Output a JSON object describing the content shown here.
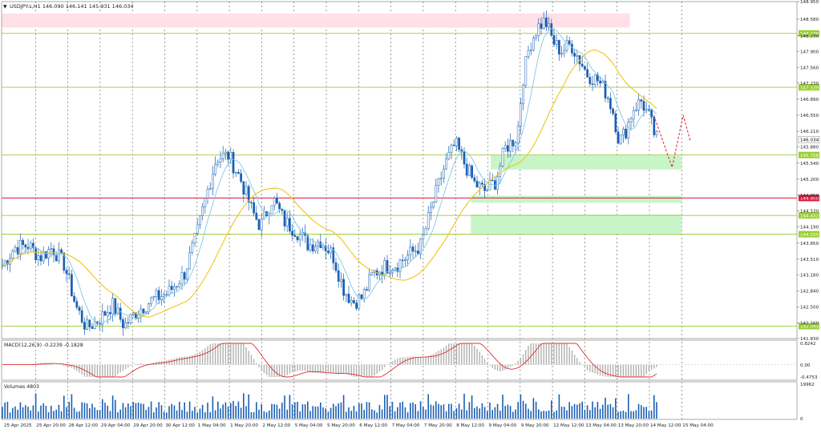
{
  "header": {
    "symbol_line": "USDJPY.s,H1  146.090 146.141 145.931 146.034"
  },
  "macd": {
    "label": "MACD(12,26,9) -0.2239 -0.1828",
    "ticks": [
      0.8242,
      0.0,
      -0.4753
    ],
    "tick_labels": [
      "0.8242",
      "0.00",
      "-0.4753"
    ]
  },
  "volumes": {
    "label": "Volumes 4803",
    "ticks": [
      19962,
      0
    ],
    "tick_labels": [
      "19962",
      "0"
    ]
  },
  "colors": {
    "bull": "#1a5fb4",
    "bear": "#1a5fb4",
    "ma_fast": "#7ec8e8",
    "ma_slow": "#f0c419",
    "level_line": "#9acd32",
    "resistance_zone": "#ffe0e6",
    "support_zone": "#c8f5c8",
    "red_level": "#dc143c",
    "forecast": "#e03048",
    "macd_hist": "#b0b0b0",
    "macd_signal": "#e03030",
    "volume_bar": "#1a5fb4",
    "price_tag": "#9acd32"
  },
  "chart_data": {
    "type": "candlestick",
    "ylim": [
      141.83,
      148.95
    ],
    "y_ticks": [
      148.95,
      148.58,
      148.23,
      147.9,
      147.56,
      147.23,
      146.89,
      146.55,
      146.21,
      145.88,
      145.54,
      145.2,
      144.86,
      144.53,
      144.19,
      143.85,
      143.51,
      143.18,
      142.84,
      142.5,
      142.16,
      141.83
    ],
    "y_tick_labels": [
      "148.950",
      "148.580",
      "148.230",
      "147.900",
      "147.560",
      "147.230",
      "146.890",
      "146.550",
      "146.210",
      "145.880",
      "145.540",
      "145.200",
      "144.860",
      "144.530",
      "144.190",
      "143.850",
      "143.510",
      "143.180",
      "142.840",
      "142.500",
      "142.160",
      "141.830"
    ],
    "x_labels": [
      "25 Apr 2025",
      "25 Apr 20:00",
      "28 Apr 12:00",
      "29 Apr 04:00",
      "29 Apr 20:00",
      "30 Apr 12:00",
      "1 May 04:00",
      "1 May 20:00",
      "2 May 12:00",
      "5 May 04:00",
      "5 May 20:00",
      "6 May 12:00",
      "7 May 04:00",
      "7 May 20:00",
      "8 May 12:00",
      "9 May 04:00",
      "9 May 20:00",
      "12 May 12:00",
      "13 May 04:00",
      "13 May 20:00",
      "14 May 12:00",
      "15 May 04:00"
    ],
    "current_price": 146.034,
    "current_price_label": "146.034",
    "levels": [
      {
        "value": 148.278,
        "label": "148.278",
        "kind": "green"
      },
      {
        "value": 147.139,
        "label": "147.139",
        "kind": "green"
      },
      {
        "value": 145.708,
        "label": "145.708",
        "kind": "green"
      },
      {
        "value": 144.8,
        "label": "144.800",
        "kind": "red"
      },
      {
        "value": 144.432,
        "label": "144.432",
        "kind": "green"
      },
      {
        "value": 144.035,
        "label": "144.035",
        "kind": "green"
      },
      {
        "value": 142.093,
        "label": "142.093",
        "kind": "green"
      }
    ],
    "zones": [
      {
        "kind": "resistance",
        "from": 148.4,
        "to": 148.7,
        "x_start": 0.0,
        "x_end": 0.79
      },
      {
        "kind": "support",
        "from": 145.4,
        "to": 145.7,
        "x_start": 0.615,
        "x_end": 0.855
      },
      {
        "kind": "support",
        "from": 144.7,
        "to": 144.85,
        "x_start": 0.59,
        "x_end": 0.855
      },
      {
        "kind": "support",
        "from": 144.05,
        "to": 144.45,
        "x_start": 0.59,
        "x_end": 0.855
      }
    ],
    "forecast_path": [
      [
        0.82,
        146.55
      ],
      [
        0.843,
        145.45
      ],
      [
        0.857,
        146.55
      ],
      [
        0.866,
        146.0
      ]
    ],
    "close_anchors": [
      [
        0,
        143.3
      ],
      [
        18,
        143.75
      ],
      [
        35,
        143.8
      ],
      [
        50,
        143.55
      ],
      [
        65,
        143.75
      ],
      [
        80,
        143.4
      ],
      [
        95,
        142.5
      ],
      [
        108,
        142.05
      ],
      [
        125,
        142.25
      ],
      [
        140,
        142.55
      ],
      [
        155,
        142.1
      ],
      [
        170,
        142.4
      ],
      [
        190,
        142.65
      ],
      [
        210,
        142.8
      ],
      [
        230,
        143.2
      ],
      [
        245,
        144.0
      ],
      [
        258,
        144.9
      ],
      [
        270,
        145.65
      ],
      [
        285,
        145.7
      ],
      [
        300,
        145.2
      ],
      [
        315,
        144.5
      ],
      [
        325,
        144.2
      ],
      [
        340,
        144.8
      ],
      [
        355,
        144.3
      ],
      [
        370,
        144.1
      ],
      [
        385,
        143.8
      ],
      [
        400,
        143.9
      ],
      [
        415,
        143.6
      ],
      [
        428,
        142.9
      ],
      [
        440,
        142.6
      ],
      [
        452,
        142.7
      ],
      [
        465,
        143.2
      ],
      [
        480,
        143.35
      ],
      [
        495,
        143.4
      ],
      [
        510,
        143.6
      ],
      [
        525,
        143.8
      ],
      [
        540,
        144.7
      ],
      [
        555,
        145.5
      ],
      [
        568,
        145.95
      ],
      [
        580,
        145.5
      ],
      [
        592,
        145.1
      ],
      [
        605,
        144.95
      ],
      [
        618,
        145.15
      ],
      [
        630,
        145.85
      ],
      [
        645,
        146.1
      ],
      [
        652,
        147.3
      ],
      [
        660,
        148.0
      ],
      [
        670,
        148.4
      ],
      [
        680,
        148.55
      ],
      [
        690,
        148.1
      ],
      [
        700,
        147.9
      ],
      [
        712,
        148.05
      ],
      [
        722,
        147.75
      ],
      [
        733,
        147.4
      ],
      [
        745,
        147.3
      ],
      [
        757,
        147.0
      ],
      [
        765,
        146.6
      ],
      [
        772,
        146.0
      ],
      [
        780,
        146.2
      ],
      [
        790,
        146.7
      ],
      [
        800,
        146.85
      ],
      [
        810,
        146.5
      ],
      [
        818,
        146.05
      ]
    ]
  }
}
